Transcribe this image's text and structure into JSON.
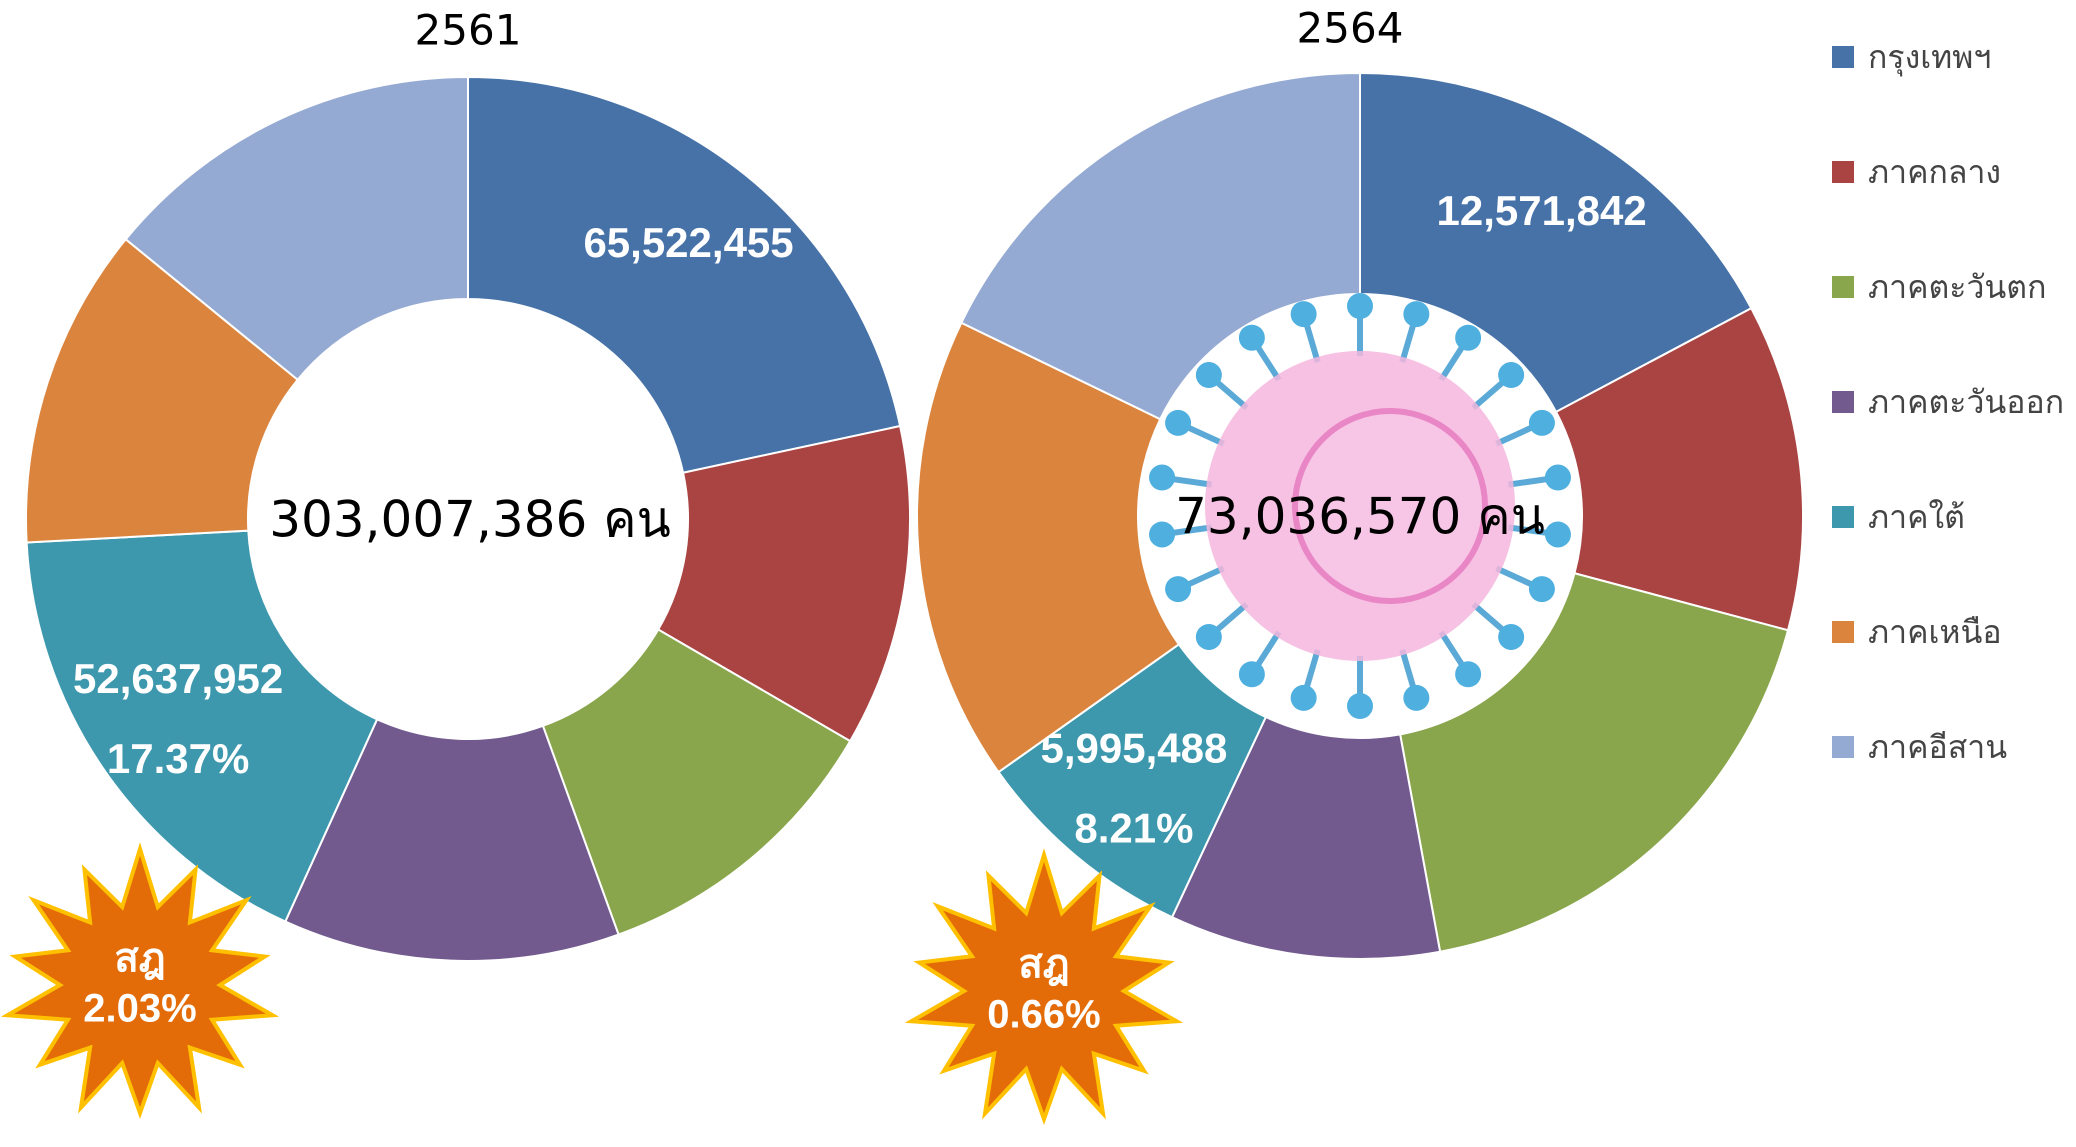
{
  "chart_data": [
    {
      "type": "donut",
      "title": "2561",
      "categories": [
        "กรุงเทพฯ",
        "ภาคกลาง",
        "ภาคตะวันตก",
        "ภาคตะวันออก",
        "ภาคใต้",
        "ภาคเหนือ",
        "ภาคอีสาน"
      ],
      "values": [
        65522455,
        35600000,
        33600000,
        37300000,
        52637952,
        35600000,
        42700000
      ],
      "value_labels": [
        "65,522,455",
        null,
        null,
        null,
        "52,637,952",
        null,
        null
      ],
      "percent_labels": [
        null,
        null,
        null,
        null,
        "17.37%",
        null,
        null
      ],
      "colors": [
        "#4672a8",
        "#a94442",
        "#8aa64c",
        "#725a8f",
        "#3d98ae",
        "#db843d",
        "#95aad3"
      ],
      "center_label": "303,007,386 คน",
      "burst_label": [
        "สฎ",
        "2.03%"
      ]
    },
    {
      "type": "donut",
      "title": "2564",
      "categories": [
        "กรุงเทพฯ",
        "ภาคกลาง",
        "ภาคตะวันตก",
        "ภาคตะวันออก",
        "ภาคใต้",
        "ภาคเหนือ",
        "ภาคอีสาน"
      ],
      "values": [
        12571842,
        8700000,
        13100000,
        7200000,
        5995488,
        12400000,
        13000000
      ],
      "value_labels": [
        "12,571,842",
        null,
        null,
        null,
        "5,995,488",
        null,
        null
      ],
      "percent_labels": [
        null,
        null,
        null,
        null,
        "8.21%",
        null,
        null
      ],
      "colors": [
        "#4672a8",
        "#a94442",
        "#8aa64c",
        "#725a8f",
        "#3d98ae",
        "#db843d",
        "#95aad3"
      ],
      "center_label": "73,036,570 คน",
      "burst_label": [
        "สฎ",
        "0.66%"
      ],
      "legend": "right"
    }
  ]
}
